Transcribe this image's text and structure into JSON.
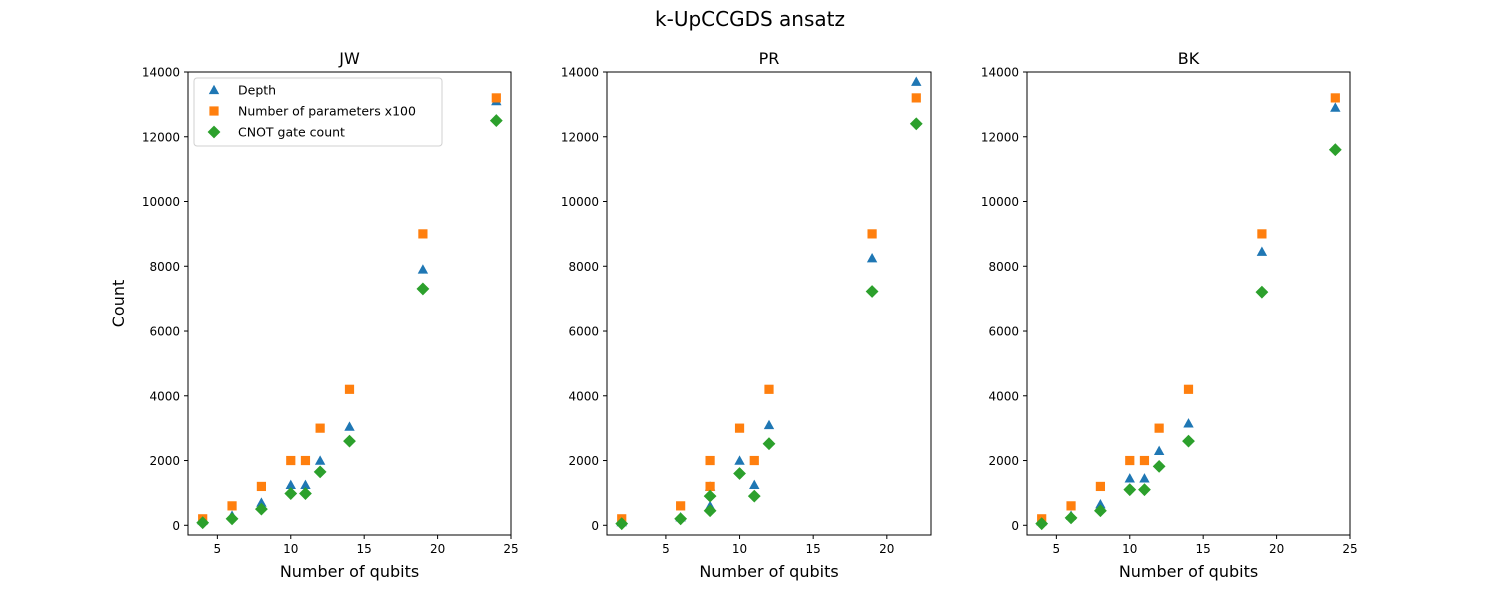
{
  "figure": {
    "suptitle": "k-UpCCGDS ansatz"
  },
  "chart_data": [
    {
      "type": "scatter",
      "title": "JW",
      "xlabel": "Number of qubits",
      "ylabel": "Count",
      "xlim": [
        3,
        25
      ],
      "ylim": [
        -300,
        14000
      ],
      "xticks": [
        5,
        10,
        15,
        20,
        25
      ],
      "yticks": [
        0,
        2000,
        4000,
        6000,
        8000,
        10000,
        12000,
        14000
      ],
      "legend": {
        "placement": "top-left"
      },
      "series": [
        {
          "name": "Depth",
          "color": "#1f77b4",
          "marker": "triangle",
          "x": [
            4,
            6,
            8,
            10,
            11,
            12,
            14,
            19,
            24
          ],
          "y": [
            150,
            300,
            700,
            1250,
            1250,
            2000,
            3050,
            7900,
            13100
          ]
        },
        {
          "name": "Number of parameters x100",
          "color": "#ff7f0e",
          "marker": "square",
          "x": [
            4,
            6,
            8,
            10,
            11,
            12,
            14,
            19,
            24
          ],
          "y": [
            200,
            600,
            1200,
            2000,
            2000,
            3000,
            4200,
            9000,
            13200
          ]
        },
        {
          "name": "CNOT gate count",
          "color": "#2ca02c",
          "marker": "diamond",
          "x": [
            4,
            6,
            8,
            10,
            11,
            12,
            14,
            19,
            24
          ],
          "y": [
            80,
            200,
            500,
            980,
            980,
            1650,
            2600,
            7300,
            12500
          ]
        }
      ]
    },
    {
      "type": "scatter",
      "title": "PR",
      "xlabel": "Number of qubits",
      "ylabel": "",
      "xlim": [
        1,
        23
      ],
      "ylim": [
        -300,
        14000
      ],
      "xticks": [
        5,
        10,
        15,
        20
      ],
      "yticks": [
        0,
        2000,
        4000,
        6000,
        8000,
        10000,
        12000,
        14000
      ],
      "series": [
        {
          "name": "Depth",
          "color": "#1f77b4",
          "marker": "triangle",
          "x": [
            2,
            6,
            8,
            8,
            10,
            11,
            12,
            19,
            22
          ],
          "y": [
            100,
            250,
            600,
            1200,
            2000,
            1250,
            3100,
            8250,
            13700
          ]
        },
        {
          "name": "Number of parameters x100",
          "color": "#ff7f0e",
          "marker": "square",
          "x": [
            2,
            6,
            8,
            8,
            10,
            11,
            12,
            19,
            22
          ],
          "y": [
            200,
            600,
            1200,
            2000,
            3000,
            2000,
            4200,
            9000,
            13200
          ]
        },
        {
          "name": "CNOT gate count",
          "color": "#2ca02c",
          "marker": "diamond",
          "x": [
            2,
            6,
            8,
            8,
            10,
            11,
            12,
            19,
            22
          ],
          "y": [
            50,
            200,
            450,
            900,
            1600,
            900,
            2520,
            7220,
            12400
          ]
        }
      ]
    },
    {
      "type": "scatter",
      "title": "BK",
      "xlabel": "Number of qubits",
      "ylabel": "",
      "xlim": [
        3,
        25
      ],
      "ylim": [
        -300,
        14000
      ],
      "xticks": [
        5,
        10,
        15,
        20,
        25
      ],
      "yticks": [
        0,
        2000,
        4000,
        6000,
        8000,
        10000,
        12000,
        14000
      ],
      "series": [
        {
          "name": "Depth",
          "color": "#1f77b4",
          "marker": "triangle",
          "x": [
            4,
            6,
            8,
            10,
            11,
            12,
            14,
            19,
            24
          ],
          "y": [
            120,
            300,
            650,
            1450,
            1450,
            2300,
            3150,
            8450,
            12900
          ]
        },
        {
          "name": "Number of parameters x100",
          "color": "#ff7f0e",
          "marker": "square",
          "x": [
            4,
            6,
            8,
            10,
            11,
            12,
            14,
            19,
            24
          ],
          "y": [
            200,
            600,
            1200,
            2000,
            2000,
            3000,
            4200,
            9000,
            13200
          ]
        },
        {
          "name": "CNOT gate count",
          "color": "#2ca02c",
          "marker": "diamond",
          "x": [
            4,
            6,
            8,
            10,
            11,
            12,
            14,
            19,
            24
          ],
          "y": [
            50,
            230,
            450,
            1100,
            1100,
            1820,
            2600,
            7200,
            11600
          ]
        }
      ]
    }
  ]
}
